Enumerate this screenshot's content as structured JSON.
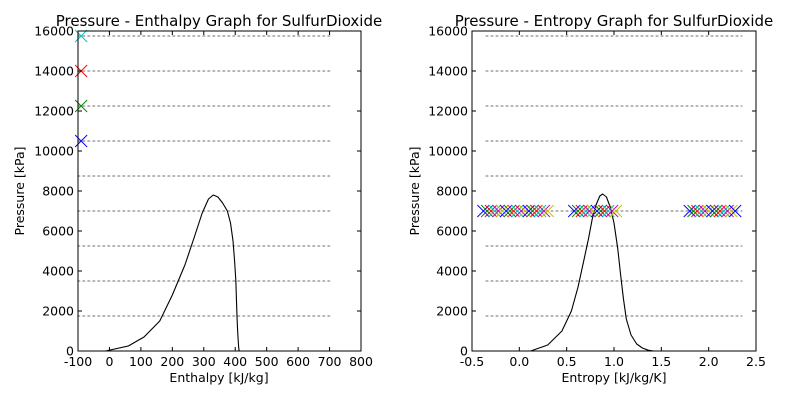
{
  "colors": {
    "background": "#ffffff",
    "axes": "#000000",
    "grid_lines": "#9e9e9e",
    "dome_curve": "#000000",
    "marker_palette": [
      "#0000ff",
      "#008000",
      "#ff0000",
      "#00bfbf",
      "#bf00bf",
      "#bfbf00"
    ]
  },
  "chart_data": [
    {
      "type": "line",
      "title": "Pressure - Enthalpy Graph for SulfurDioxide",
      "xlabel": "Enthalpy [kJ/kg]",
      "ylabel": "Pressure [kPa]",
      "xlim": [
        -100,
        800
      ],
      "ylim": [
        0,
        16000
      ],
      "xticks": [
        -100,
        0,
        100,
        200,
        300,
        400,
        500,
        600,
        700,
        800
      ],
      "yticks": [
        0,
        2000,
        4000,
        6000,
        8000,
        10000,
        12000,
        14000,
        16000
      ],
      "grid": false,
      "isobars": {
        "style": "dotted",
        "x_range": [
          -100,
          700
        ],
        "pressures": [
          1750,
          3500,
          5250,
          7000,
          8750,
          10500,
          12250,
          14000,
          15750
        ]
      },
      "series": [
        {
          "kind": "saturation-dome",
          "x": [
            -12,
            60,
            110,
            160,
            200,
            240,
            270,
            295,
            315,
            330,
            345,
            360,
            375,
            385,
            393,
            398,
            402,
            404,
            406,
            408,
            410,
            411,
            412,
            413
          ],
          "y": [
            0,
            250,
            700,
            1500,
            2800,
            4300,
            5700,
            6900,
            7600,
            7800,
            7700,
            7400,
            7000,
            6400,
            5500,
            4500,
            3500,
            2500,
            1600,
            900,
            400,
            180,
            60,
            0
          ]
        },
        {
          "kind": "x-markers",
          "x": [
            -90,
            -90,
            -90,
            -90
          ],
          "y": [
            10500,
            12250,
            14000,
            15750
          ],
          "color_index": [
            0,
            1,
            2,
            3
          ]
        }
      ]
    },
    {
      "type": "line",
      "title": "Pressure - Entropy Graph for SulfurDioxide",
      "xlabel": "Entropy [kJ/kg/K]",
      "ylabel": "Pressure [kPa]",
      "xlim": [
        -0.5,
        2.5
      ],
      "ylim": [
        0,
        16000
      ],
      "xticks": [
        -0.5,
        0.0,
        0.5,
        1.0,
        1.5,
        2.0,
        2.5
      ],
      "yticks": [
        0,
        2000,
        4000,
        6000,
        8000,
        10000,
        12000,
        14000,
        16000
      ],
      "grid": false,
      "isobars": {
        "style": "dotted",
        "x_range": [
          -0.35,
          2.35
        ],
        "pressures": [
          1750,
          3500,
          5250,
          7000,
          8750,
          10500,
          12250,
          14000,
          15750
        ]
      },
      "series": [
        {
          "kind": "saturation-dome",
          "x": [
            0.12,
            0.3,
            0.45,
            0.55,
            0.62,
            0.68,
            0.73,
            0.77,
            0.81,
            0.85,
            0.88,
            0.92,
            0.96,
            1.0,
            1.04,
            1.07,
            1.1,
            1.13,
            1.18,
            1.24,
            1.3,
            1.36,
            1.42
          ],
          "y": [
            0,
            300,
            1000,
            2000,
            3200,
            4500,
            5600,
            6600,
            7300,
            7750,
            7850,
            7700,
            7200,
            6400,
            5100,
            3800,
            2600,
            1600,
            800,
            350,
            150,
            40,
            0
          ]
        },
        {
          "kind": "x-markers",
          "x": [
            -0.38,
            -0.34,
            -0.3,
            -0.26,
            -0.22,
            -0.18,
            -0.14,
            -0.1,
            -0.06,
            -0.02,
            0.02,
            0.06,
            0.1,
            0.14,
            0.18,
            0.22,
            0.26,
            0.3,
            0.58,
            0.62,
            0.66,
            0.7,
            0.74,
            0.78,
            0.82,
            0.86,
            0.9,
            0.94,
            0.98,
            1.02,
            1.8,
            1.84,
            1.88,
            1.92,
            1.96,
            2.0,
            2.04,
            2.08,
            2.12,
            2.16,
            2.2,
            2.24,
            2.28
          ],
          "y": [
            7000,
            7000,
            7000,
            7000,
            7000,
            7000,
            7000,
            7000,
            7000,
            7000,
            7000,
            7000,
            7000,
            7000,
            7000,
            7000,
            7000,
            7000,
            7000,
            7000,
            7000,
            7000,
            7000,
            7000,
            7000,
            7000,
            7000,
            7000,
            7000,
            7000,
            7000,
            7000,
            7000,
            7000,
            7000,
            7000,
            7000,
            7000,
            7000,
            7000,
            7000,
            7000,
            7000
          ],
          "color_cycle": true
        }
      ]
    }
  ]
}
